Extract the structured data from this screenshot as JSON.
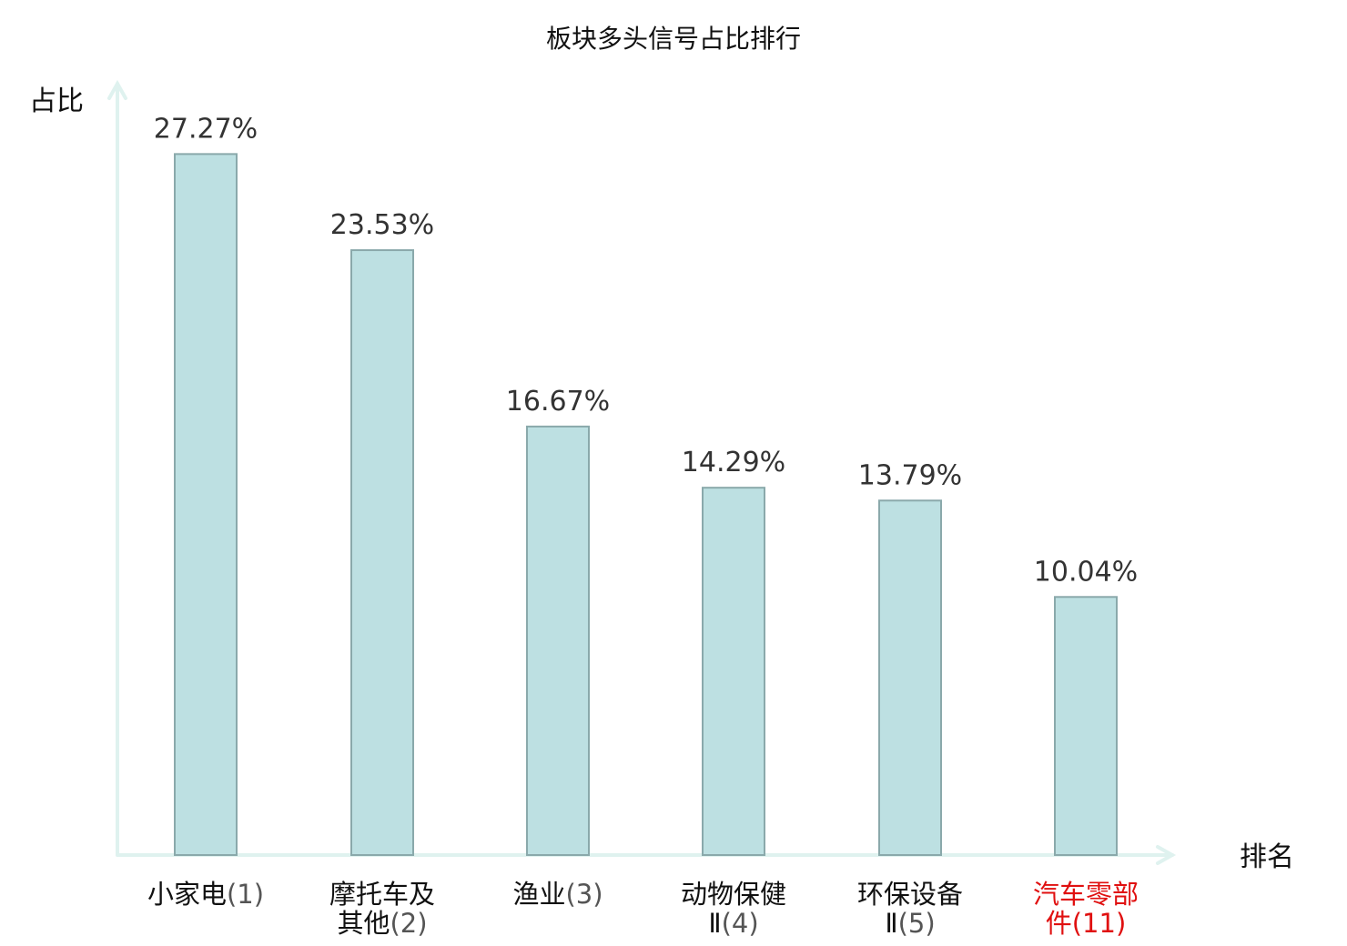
{
  "chart_data": {
    "type": "bar",
    "title": "板块多头信号占比排行",
    "ylabel": "占比",
    "xlabel": "排名",
    "ylim": [
      0,
      30
    ],
    "grid": false,
    "categories": [
      {
        "name_lines": [
          "小家电"
        ],
        "rank": "(1)",
        "highlight": false
      },
      {
        "name_lines": [
          "摩托车及",
          "其他"
        ],
        "rank": "(2)",
        "highlight": false
      },
      {
        "name_lines": [
          "渔业"
        ],
        "rank": "(3)",
        "highlight": false
      },
      {
        "name_lines": [
          "动物保健",
          "Ⅱ"
        ],
        "rank": "(4)",
        "highlight": false
      },
      {
        "name_lines": [
          "环保设备",
          "Ⅱ"
        ],
        "rank": "(5)",
        "highlight": false
      },
      {
        "name_lines": [
          "汽车零部",
          "件"
        ],
        "rank": "(11)",
        "highlight": true
      }
    ],
    "values": [
      27.27,
      23.53,
      16.67,
      14.29,
      13.79,
      10.04
    ],
    "value_labels": [
      "27.27%",
      "23.53%",
      "16.67%",
      "14.29%",
      "13.79%",
      "10.04%"
    ]
  },
  "colors": {
    "bar_fill": "#bde0e2",
    "bar_stroke": "#8aa9ab",
    "axis": "#dff2ef",
    "highlight_text": "#e01010"
  }
}
